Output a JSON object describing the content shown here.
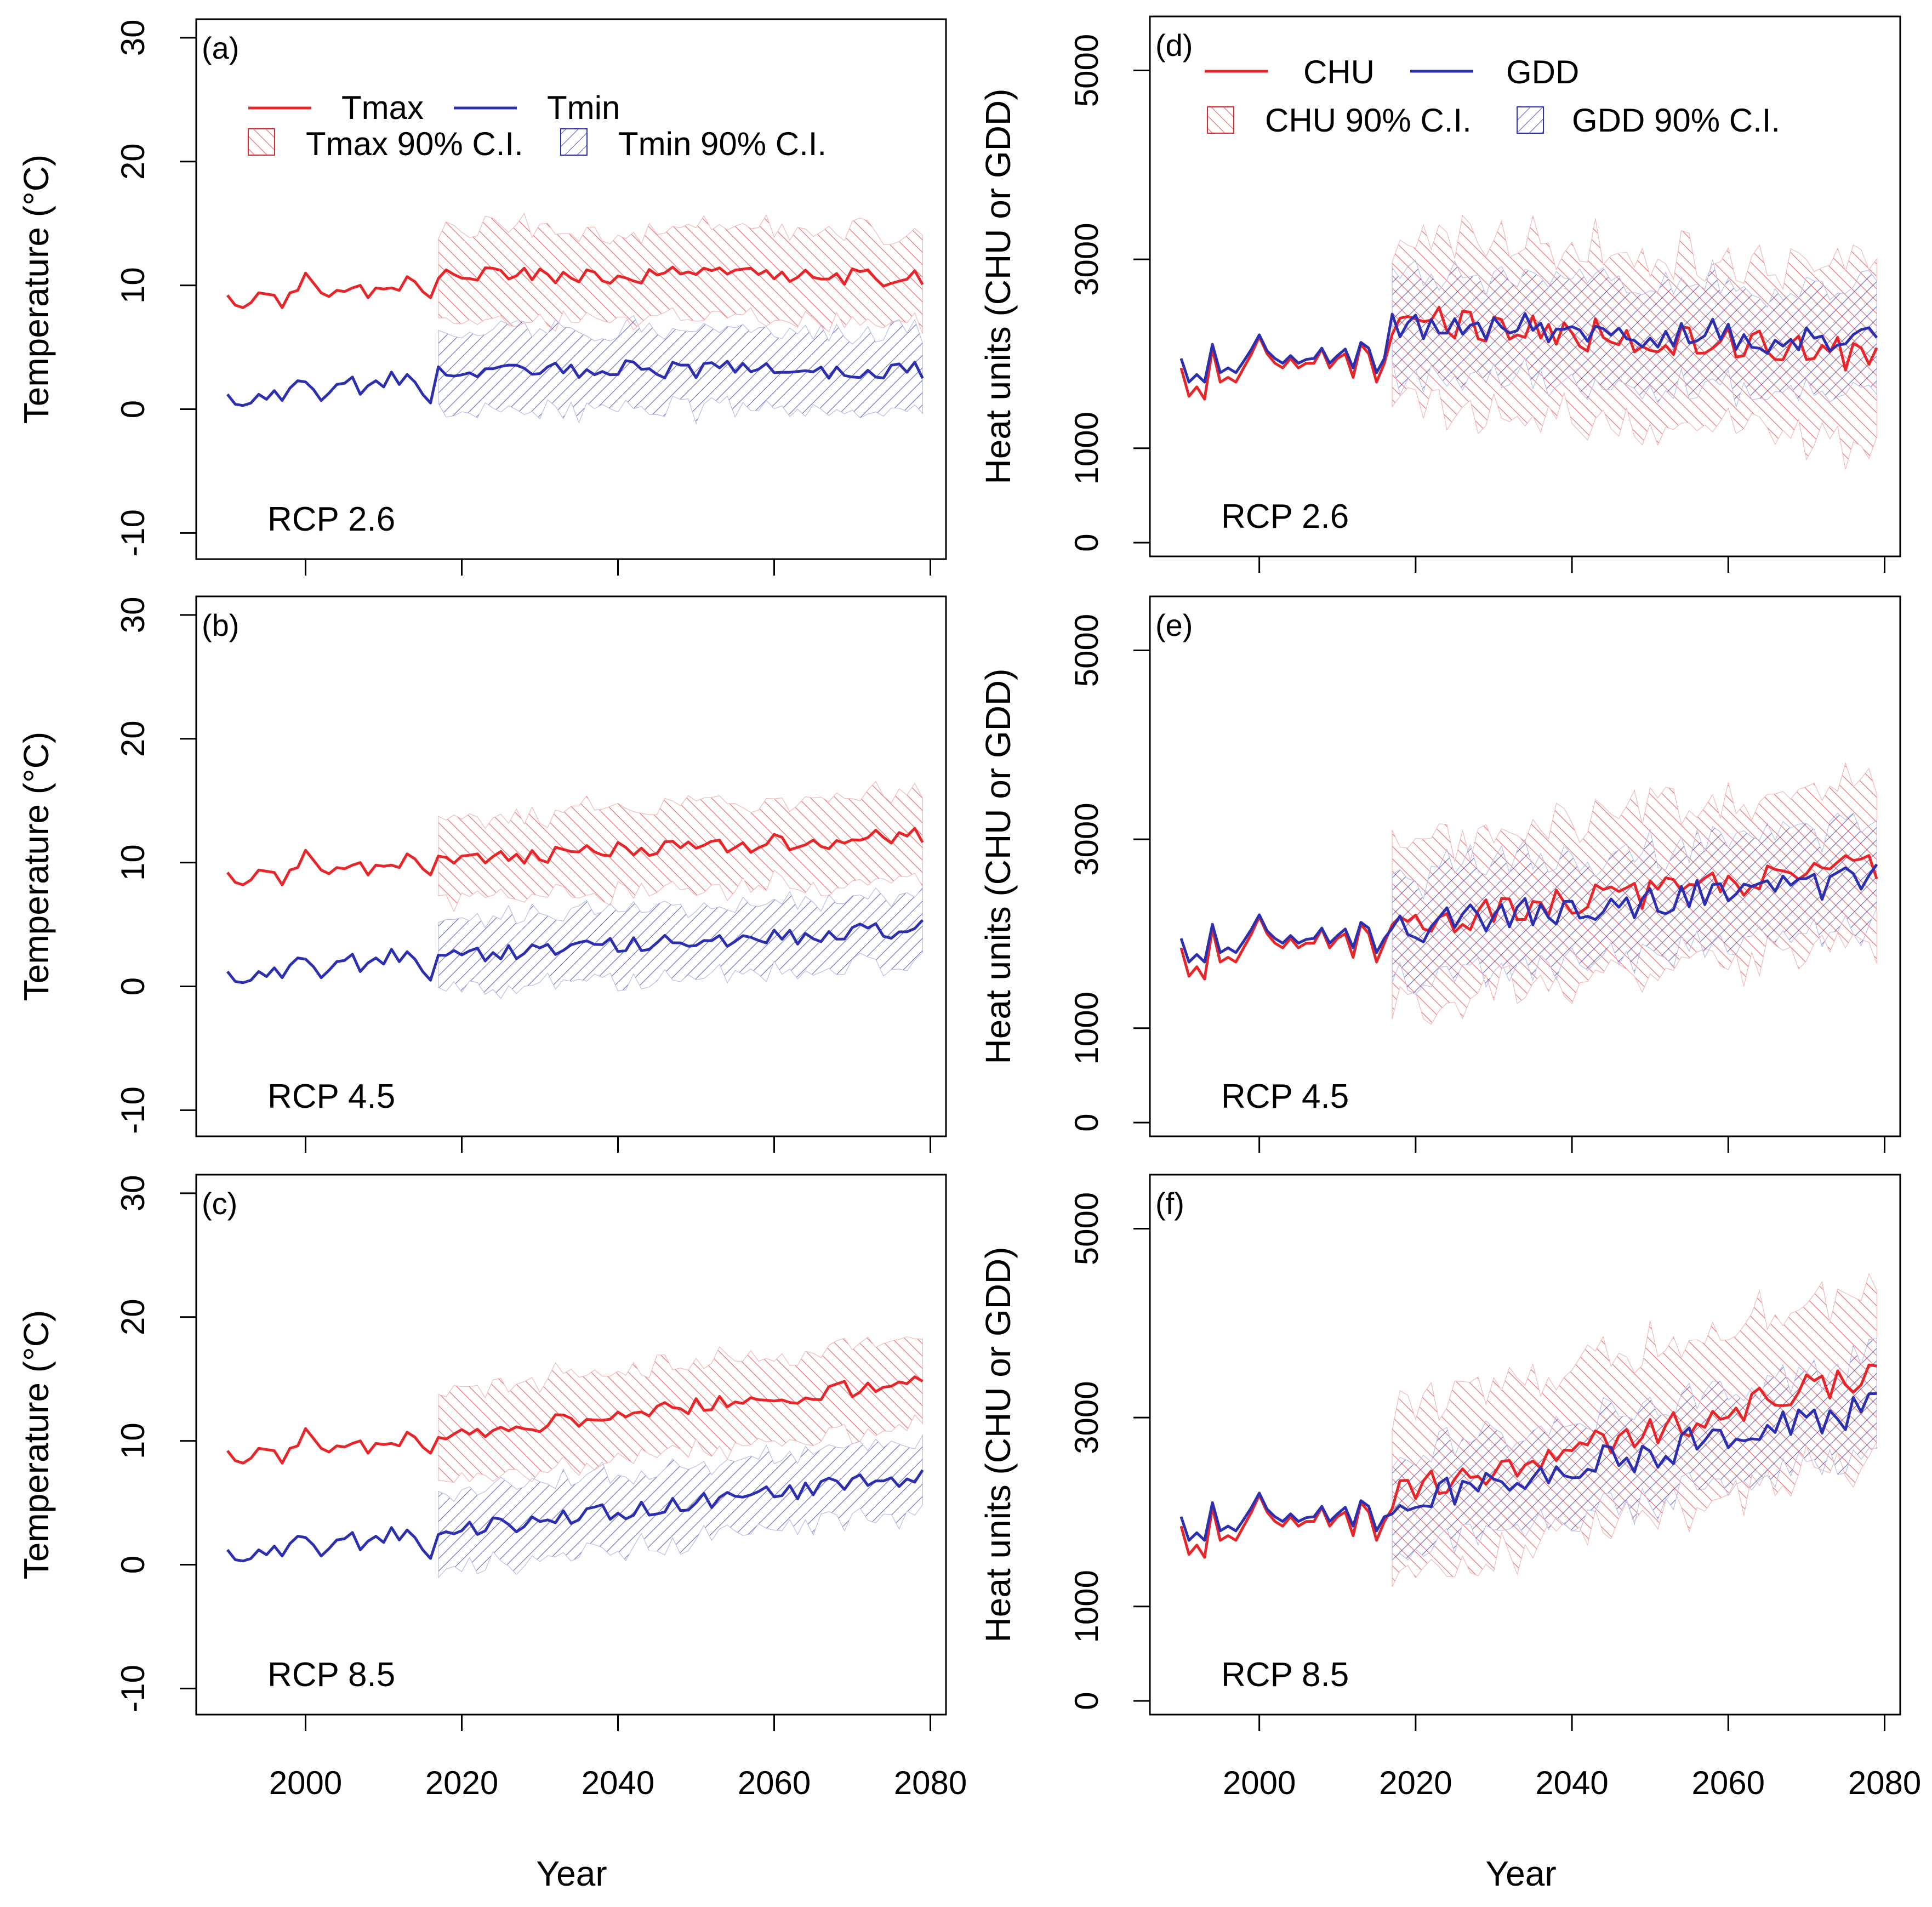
{
  "colors": {
    "red": "#e8262a",
    "blue": "#2b2fb0",
    "red_fill": "#f4a7a7",
    "blue_fill": "#9da4dc"
  },
  "figure": {
    "x_axis_title": "Year"
  },
  "chart_data": [
    {
      "type": "line",
      "panel": "(a)",
      "scenario": "RCP 2.6",
      "kind": "temp",
      "ylabel": "Temperature (°C)",
      "ylim": [
        -10,
        30
      ],
      "yticks": [
        "-10",
        "0",
        "10",
        "20",
        "30"
      ],
      "xlim": [
        1990,
        2080
      ],
      "xticks": [
        "2000",
        "2020",
        "2040",
        "2060",
        "2080"
      ],
      "legend": [
        "Tmax",
        "Tmin",
        "Tmax 90% C.I.",
        "Tmin 90% C.I."
      ],
      "hist_x": [
        1990,
        1991,
        1992,
        1993,
        1994,
        1995,
        1996,
        1997,
        1998,
        1999,
        2000,
        2001,
        2002,
        2003,
        2004,
        2005,
        2006,
        2007,
        2008,
        2009,
        2010,
        2011,
        2012,
        2013,
        2014,
        2015,
        2016
      ],
      "series": [
        {
          "name": "Tmax",
          "hist": [
            9.2,
            8.4,
            8.2,
            8.6,
            9.4,
            9.3,
            9.2,
            8.2,
            9.4,
            9.6,
            11.0,
            10.2,
            9.4,
            9.1,
            9.6,
            9.5,
            9.8,
            10.0,
            9.0,
            9.8,
            9.7,
            9.8,
            9.6,
            10.7,
            10.3,
            9.5,
            9.0
          ],
          "proj_start": 11.0,
          "proj_end": 10.6
        },
        {
          "name": "Tmin",
          "hist": [
            1.2,
            0.4,
            0.3,
            0.5,
            1.2,
            0.8,
            1.5,
            0.7,
            1.7,
            2.3,
            2.2,
            1.6,
            0.7,
            1.3,
            2.0,
            2.1,
            2.6,
            1.2,
            1.9,
            2.3,
            1.8,
            3.0,
            2.0,
            2.8,
            2.2,
            1.2,
            0.5
          ],
          "proj_start": 3.3,
          "proj_end": 3.1
        }
      ],
      "ci": [
        {
          "name": "Tmax 90% C.I.",
          "halfwidth": 3.8
        },
        {
          "name": "Tmin 90% C.I.",
          "halfwidth": 3.2
        }
      ]
    },
    {
      "type": "line",
      "panel": "(b)",
      "scenario": "RCP 4.5",
      "kind": "temp",
      "ylabel": "Temperature (°C)",
      "ylim": [
        -10,
        30
      ],
      "yticks": [
        "-10",
        "0",
        "10",
        "20",
        "30"
      ],
      "xlim": [
        1990,
        2080
      ],
      "xticks": [
        "2000",
        "2020",
        "2040",
        "2060",
        "2080"
      ],
      "legend": [],
      "hist_x": [
        1990,
        1991,
        1992,
        1993,
        1994,
        1995,
        1996,
        1997,
        1998,
        1999,
        2000,
        2001,
        2002,
        2003,
        2004,
        2005,
        2006,
        2007,
        2008,
        2009,
        2010,
        2011,
        2012,
        2013,
        2014,
        2015,
        2016
      ],
      "series": [
        {
          "name": "Tmax",
          "hist": [
            9.2,
            8.4,
            8.2,
            8.6,
            9.4,
            9.3,
            9.2,
            8.2,
            9.4,
            9.6,
            11.0,
            10.2,
            9.4,
            9.1,
            9.6,
            9.5,
            9.8,
            10.0,
            9.0,
            9.8,
            9.7,
            9.8,
            9.6,
            10.7,
            10.3,
            9.5,
            9.0
          ],
          "proj_start": 10.2,
          "proj_end": 12.2
        },
        {
          "name": "Tmin",
          "hist": [
            1.2,
            0.4,
            0.3,
            0.5,
            1.2,
            0.8,
            1.5,
            0.7,
            1.7,
            2.3,
            2.2,
            1.6,
            0.7,
            1.3,
            2.0,
            2.1,
            2.6,
            1.2,
            1.9,
            2.3,
            1.8,
            3.0,
            2.0,
            2.8,
            2.2,
            1.2,
            0.5
          ],
          "proj_start": 2.4,
          "proj_end": 4.7
        }
      ],
      "ci": [
        {
          "name": "Tmax 90% C.I.",
          "halfwidth": 3.4
        },
        {
          "name": "Tmin 90% C.I.",
          "halfwidth": 2.8
        }
      ]
    },
    {
      "type": "line",
      "panel": "(c)",
      "scenario": "RCP 8.5",
      "kind": "temp",
      "ylabel": "Temperature (°C)",
      "ylim": [
        -10,
        30
      ],
      "yticks": [
        "-10",
        "0",
        "10",
        "20",
        "30"
      ],
      "xlim": [
        1990,
        2080
      ],
      "xticks": [
        "2000",
        "2020",
        "2040",
        "2060",
        "2080"
      ],
      "legend": [],
      "hist_x": [
        1990,
        1991,
        1992,
        1993,
        1994,
        1995,
        1996,
        1997,
        1998,
        1999,
        2000,
        2001,
        2002,
        2003,
        2004,
        2005,
        2006,
        2007,
        2008,
        2009,
        2010,
        2011,
        2012,
        2013,
        2014,
        2015,
        2016
      ],
      "series": [
        {
          "name": "Tmax",
          "hist": [
            9.2,
            8.4,
            8.2,
            8.6,
            9.4,
            9.3,
            9.2,
            8.2,
            9.4,
            9.6,
            11.0,
            10.2,
            9.4,
            9.1,
            9.6,
            9.5,
            9.8,
            10.0,
            9.0,
            9.8,
            9.7,
            9.8,
            9.6,
            10.7,
            10.3,
            9.5,
            9.0
          ],
          "proj_start": 10.5,
          "proj_end": 14.8
        },
        {
          "name": "Tmin",
          "hist": [
            1.2,
            0.4,
            0.3,
            0.5,
            1.2,
            0.8,
            1.5,
            0.7,
            1.7,
            2.3,
            2.2,
            1.6,
            0.7,
            1.3,
            2.0,
            2.1,
            2.6,
            1.2,
            1.9,
            2.3,
            1.8,
            3.0,
            2.0,
            2.8,
            2.2,
            1.2,
            0.5
          ],
          "proj_start": 2.6,
          "proj_end": 7.2
        }
      ],
      "ci": [
        {
          "name": "Tmax 90% C.I.",
          "halfwidth": 3.6
        },
        {
          "name": "Tmin 90% C.I.",
          "halfwidth": 3.0
        }
      ]
    },
    {
      "type": "line",
      "panel": "(d)",
      "scenario": "RCP 2.6",
      "kind": "heat",
      "ylabel": "Heat units (CHU or GDD)",
      "ylim": [
        0,
        5400
      ],
      "yticks": [
        "0",
        "1000",
        "3000",
        "5000"
      ],
      "xlim": [
        1990,
        2080
      ],
      "xticks": [
        "2000",
        "2020",
        "2040",
        "2060",
        "2080"
      ],
      "legend": [
        "CHU",
        "GDD",
        "CHU 90% C.I.",
        "GDD 90% C.I."
      ],
      "hist_x": [
        1990,
        1991,
        1992,
        1993,
        1994,
        1995,
        1996,
        1997,
        1998,
        1999,
        2000,
        2001,
        2002,
        2003,
        2004,
        2005,
        2006,
        2007,
        2008,
        2009,
        2010,
        2011,
        2012,
        2013,
        2014,
        2015,
        2016
      ],
      "series": [
        {
          "name": "CHU",
          "hist": [
            1850,
            1550,
            1650,
            1520,
            2050,
            1700,
            1750,
            1700,
            1850,
            2000,
            2180,
            2000,
            1900,
            1850,
            1950,
            1850,
            1900,
            1900,
            2050,
            1850,
            1950,
            2000,
            1750,
            2100,
            2000,
            1700,
            1900
          ],
          "proj_start": 2350,
          "proj_end": 1980
        },
        {
          "name": "GDD",
          "hist": [
            1950,
            1700,
            1780,
            1700,
            2100,
            1800,
            1850,
            1800,
            1920,
            2050,
            2200,
            2030,
            1950,
            1900,
            1980,
            1900,
            1940,
            1950,
            2060,
            1900,
            1980,
            2050,
            1850,
            2120,
            2060,
            1800,
            1950
          ],
          "proj_start": 2300,
          "proj_end": 2150
        }
      ],
      "ci": [
        {
          "name": "CHU 90% C.I.",
          "halfwidth": 900
        },
        {
          "name": "GDD 90% C.I.",
          "halfwidth": 550
        }
      ]
    },
    {
      "type": "line",
      "panel": "(e)",
      "scenario": "RCP 4.5",
      "kind": "heat",
      "ylabel": "Heat units (CHU or GDD)",
      "ylim": [
        0,
        5400
      ],
      "yticks": [
        "0",
        "1000",
        "3000",
        "5000"
      ],
      "xlim": [
        1990,
        2080
      ],
      "xticks": [
        "2000",
        "2020",
        "2040",
        "2060",
        "2080"
      ],
      "legend": [],
      "hist_x": [
        1990,
        1991,
        1992,
        1993,
        1994,
        1995,
        1996,
        1997,
        1998,
        1999,
        2000,
        2001,
        2002,
        2003,
        2004,
        2005,
        2006,
        2007,
        2008,
        2009,
        2010,
        2011,
        2012,
        2013,
        2014,
        2015,
        2016
      ],
      "series": [
        {
          "name": "CHU",
          "hist": [
            1850,
            1550,
            1650,
            1520,
            2050,
            1700,
            1750,
            1700,
            1850,
            2000,
            2180,
            2000,
            1900,
            1850,
            1950,
            1850,
            1900,
            1900,
            2050,
            1850,
            1950,
            2000,
            1750,
            2100,
            2000,
            1700,
            1900
          ],
          "proj_start": 2100,
          "proj_end": 2700
        },
        {
          "name": "GDD",
          "hist": [
            1950,
            1700,
            1780,
            1700,
            2100,
            1800,
            1850,
            1800,
            1920,
            2050,
            2200,
            2030,
            1950,
            1900,
            1980,
            1900,
            1940,
            1950,
            2060,
            1900,
            1980,
            2050,
            1850,
            2120,
            2060,
            1800,
            1950
          ],
          "proj_start": 2050,
          "proj_end": 2600
        }
      ],
      "ci": [
        {
          "name": "CHU 90% C.I.",
          "halfwidth": 850
        },
        {
          "name": "GDD 90% C.I.",
          "halfwidth": 550
        }
      ]
    },
    {
      "type": "line",
      "panel": "(f)",
      "scenario": "RCP 8.5",
      "kind": "heat",
      "ylabel": "Heat units (CHU or GDD)",
      "ylim": [
        0,
        5400
      ],
      "yticks": [
        "0",
        "1000",
        "3000",
        "5000"
      ],
      "xlim": [
        1990,
        2080
      ],
      "xticks": [
        "2000",
        "2020",
        "2040",
        "2060",
        "2080"
      ],
      "legend": [],
      "hist_x": [
        1990,
        1991,
        1992,
        1993,
        1994,
        1995,
        1996,
        1997,
        1998,
        1999,
        2000,
        2001,
        2002,
        2003,
        2004,
        2005,
        2006,
        2007,
        2008,
        2009,
        2010,
        2011,
        2012,
        2013,
        2014,
        2015,
        2016
      ],
      "series": [
        {
          "name": "CHU",
          "hist": [
            1850,
            1550,
            1650,
            1520,
            2050,
            1700,
            1750,
            1700,
            1850,
            2000,
            2180,
            2000,
            1900,
            1850,
            1950,
            1850,
            1900,
            1900,
            2050,
            1850,
            1950,
            2000,
            1750,
            2100,
            2000,
            1700,
            1900
          ],
          "proj_start": 2150,
          "proj_end": 3500
        },
        {
          "name": "GDD",
          "hist": [
            1950,
            1700,
            1780,
            1700,
            2100,
            1800,
            1850,
            1800,
            1920,
            2050,
            2200,
            2030,
            1950,
            1900,
            1980,
            1900,
            1940,
            1950,
            2060,
            1900,
            1980,
            2050,
            1850,
            2120,
            2060,
            1800,
            1950
          ],
          "proj_start": 2100,
          "proj_end": 3100
        }
      ],
      "ci": [
        {
          "name": "CHU 90% C.I.",
          "halfwidth": 900
        },
        {
          "name": "GDD 90% C.I.",
          "halfwidth": 500
        }
      ]
    }
  ]
}
